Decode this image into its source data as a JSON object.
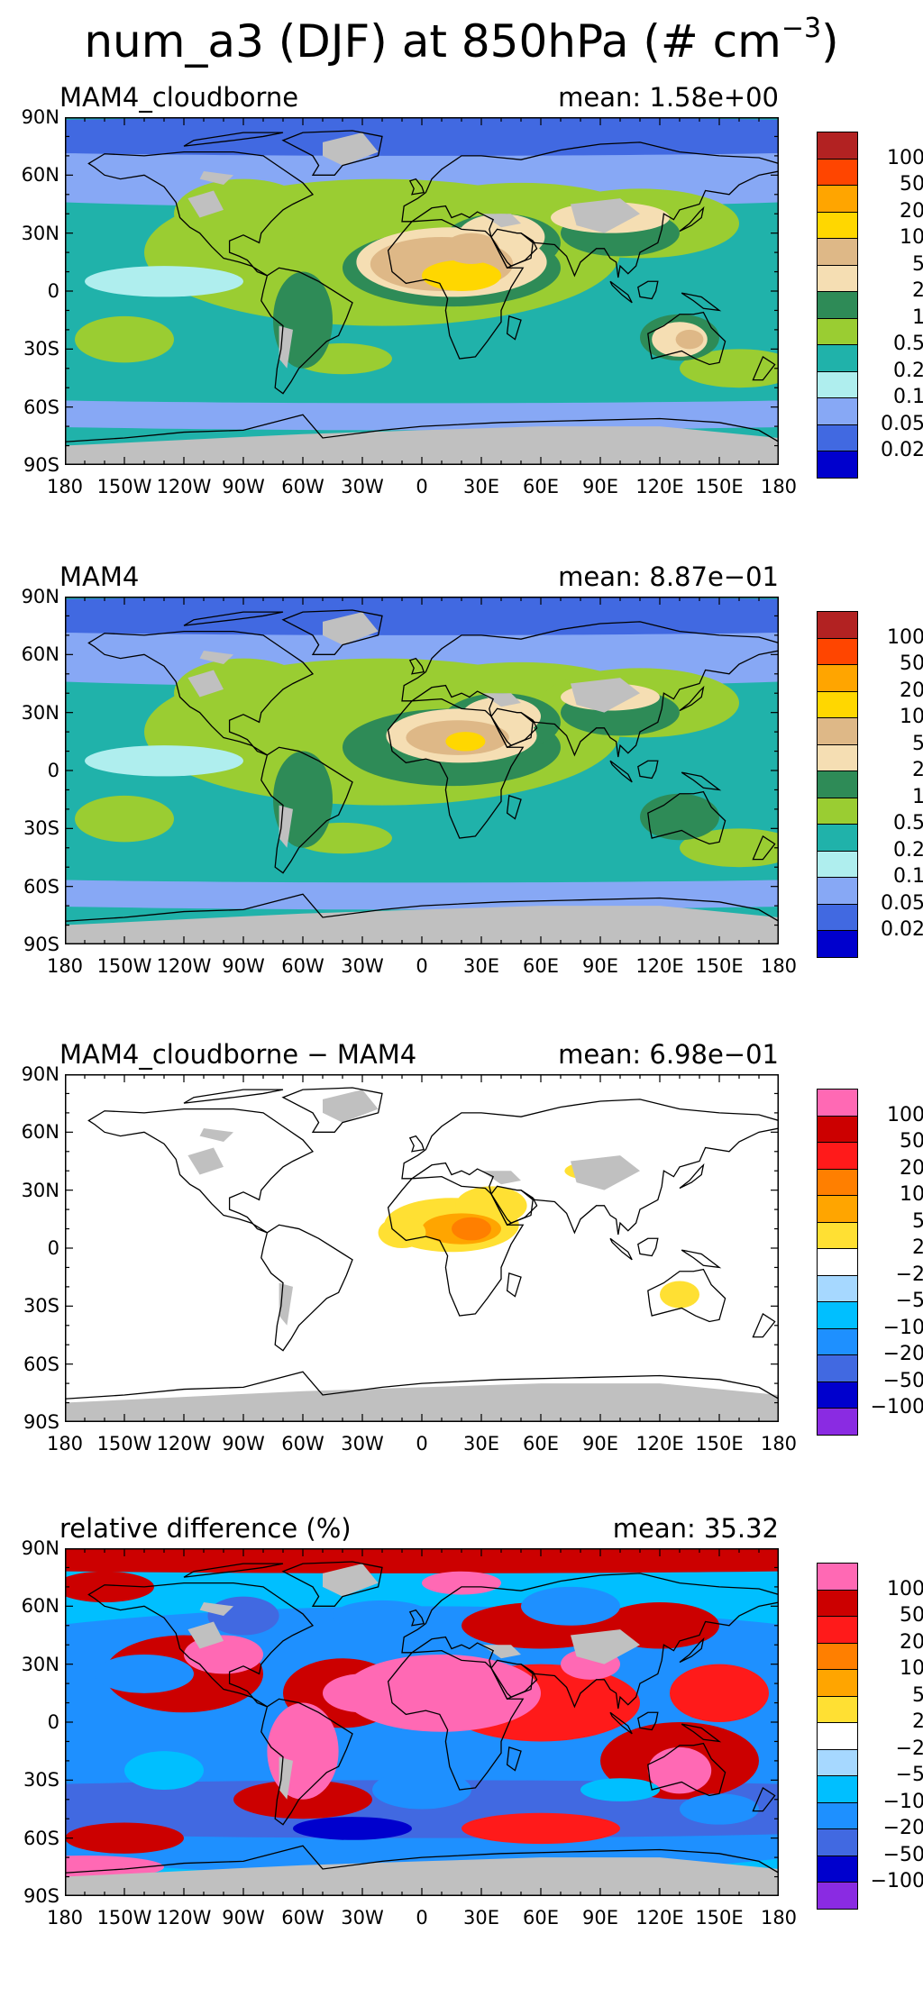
{
  "title": {
    "main": "num_a3 (DJF) at 850hPa (# cm",
    "sup": "−3",
    "close": ")"
  },
  "axes": {
    "lat_ticks": [
      "90N",
      "60N",
      "30N",
      "0",
      "30S",
      "60S",
      "90S"
    ],
    "lon_ticks": [
      "180",
      "150W",
      "120W",
      "90W",
      "60W",
      "30W",
      "0",
      "30E",
      "60E",
      "90E",
      "120E",
      "150E",
      "180"
    ]
  },
  "colorbars": {
    "abs": {
      "labels": [
        "100",
        "50",
        "20",
        "10",
        "5",
        "2",
        "1",
        "0.5",
        "0.2",
        "0.1",
        "0.05",
        "0.02"
      ],
      "colors": [
        "#b22222",
        "#ff4500",
        "#ffa500",
        "#ffd700",
        "#deb887",
        "#f5deb3",
        "#2e8b57",
        "#9acd32",
        "#20b2aa",
        "#afeeee",
        "#87a8f5",
        "#4169e1",
        "#0000cd"
      ]
    },
    "diff": {
      "labels": [
        "100",
        "50",
        "20",
        "10",
        "5",
        "2",
        "−2",
        "−5",
        "−10",
        "−20",
        "−50",
        "−100"
      ],
      "colors": [
        "#ff69b4",
        "#cc0000",
        "#ff1a1a",
        "#ff7f00",
        "#ffa500",
        "#ffe033",
        "#ffffff",
        "#a6d8ff",
        "#00bfff",
        "#1e90ff",
        "#4169e1",
        "#0000cd",
        "#8a2be2"
      ]
    }
  },
  "panels": [
    {
      "title": "MAM4_cloudborne",
      "mean_label": "mean:",
      "mean_value": "1.58e+00",
      "colorbar": "abs",
      "variant": "a"
    },
    {
      "title": "MAM4",
      "mean_label": "mean:",
      "mean_value": "8.87e−01",
      "colorbar": "abs",
      "variant": "b"
    },
    {
      "title": "MAM4_cloudborne − MAM4",
      "mean_label": "mean:",
      "mean_value": "6.98e−01",
      "colorbar": "diff",
      "variant": "c"
    },
    {
      "title": "relative difference (%)",
      "mean_label": "mean:",
      "mean_value": "35.32",
      "colorbar": "diff",
      "variant": "d"
    }
  ],
  "missing_color": "#c0c0c0"
}
